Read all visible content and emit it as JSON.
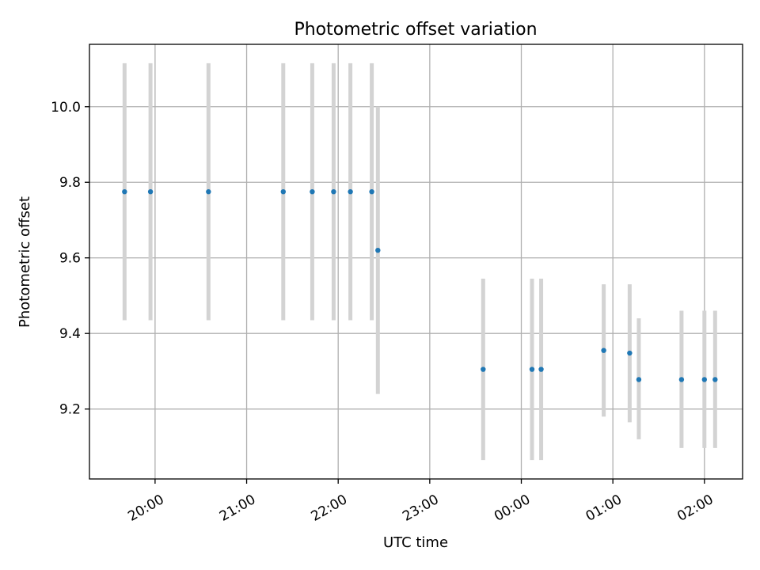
{
  "chart_data": {
    "type": "scatter",
    "title": "Photometric offset variation",
    "xlabel": "UTC time",
    "ylabel": "Photometric offset",
    "x_axis": "time",
    "xlim": [
      "19:17",
      "02:25"
    ],
    "ylim": [
      9.015,
      10.165
    ],
    "x_ticks": [
      "20:00",
      "21:00",
      "22:00",
      "23:00",
      "00:00",
      "01:00",
      "02:00"
    ],
    "y_ticks": [
      9.2,
      9.4,
      9.6,
      9.8,
      10.0
    ],
    "y_tick_labels": [
      "9.2",
      "9.4",
      "9.6",
      "9.8",
      "10.0"
    ],
    "grid": true,
    "marker_color": "#1f77b4",
    "errorbar_color": "#d3d3d3",
    "points": [
      {
        "time": "19:40",
        "y": 9.775,
        "y_low": 9.435,
        "y_high": 10.115
      },
      {
        "time": "19:57",
        "y": 9.775,
        "y_low": 9.435,
        "y_high": 10.115
      },
      {
        "time": "20:35",
        "y": 9.775,
        "y_low": 9.435,
        "y_high": 10.115
      },
      {
        "time": "21:24",
        "y": 9.775,
        "y_low": 9.435,
        "y_high": 10.115
      },
      {
        "time": "21:43",
        "y": 9.775,
        "y_low": 9.435,
        "y_high": 10.115
      },
      {
        "time": "21:57",
        "y": 9.775,
        "y_low": 9.435,
        "y_high": 10.115
      },
      {
        "time": "22:08",
        "y": 9.775,
        "y_low": 9.435,
        "y_high": 10.115
      },
      {
        "time": "22:22",
        "y": 9.775,
        "y_low": 9.435,
        "y_high": 10.115
      },
      {
        "time": "22:26",
        "y": 9.62,
        "y_low": 9.24,
        "y_high": 10.0
      },
      {
        "time": "23:35",
        "y": 9.305,
        "y_low": 9.065,
        "y_high": 9.545
      },
      {
        "time": "00:07",
        "y": 9.305,
        "y_low": 9.065,
        "y_high": 9.545
      },
      {
        "time": "00:13",
        "y": 9.305,
        "y_low": 9.065,
        "y_high": 9.545
      },
      {
        "time": "00:54",
        "y": 9.355,
        "y_low": 9.18,
        "y_high": 9.53
      },
      {
        "time": "01:11",
        "y": 9.348,
        "y_low": 9.165,
        "y_high": 9.53
      },
      {
        "time": "01:17",
        "y": 9.278,
        "y_low": 9.12,
        "y_high": 9.44
      },
      {
        "time": "01:45",
        "y": 9.278,
        "y_low": 9.097,
        "y_high": 9.46
      },
      {
        "time": "02:00",
        "y": 9.278,
        "y_low": 9.097,
        "y_high": 9.46
      },
      {
        "time": "02:07",
        "y": 9.278,
        "y_low": 9.097,
        "y_high": 9.46
      }
    ]
  }
}
